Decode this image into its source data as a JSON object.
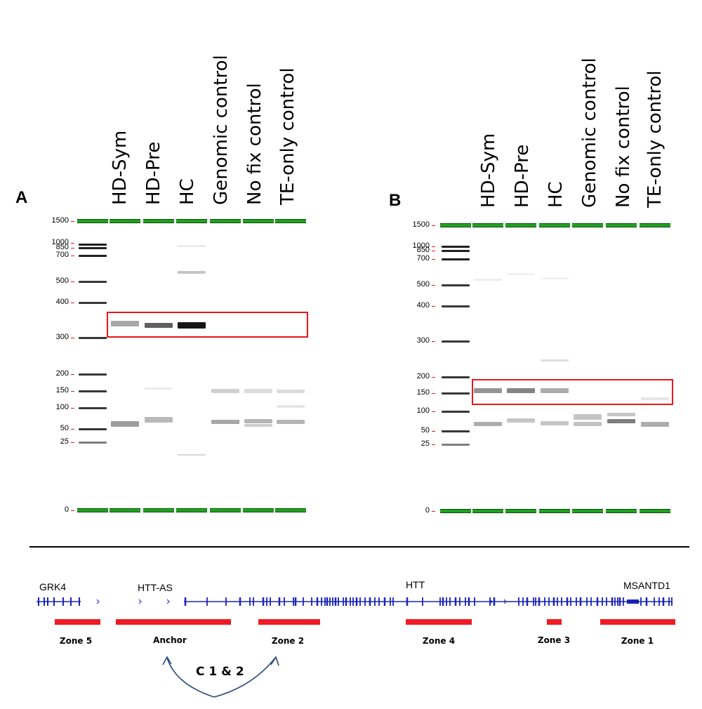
{
  "panels": [
    {
      "letter": "A",
      "lanes": [
        "HD-Sym",
        "HD-Pre",
        "HC",
        "Genomic control",
        "No fix control",
        "TE-only control"
      ],
      "ladder_labels": [
        "1500",
        "1000",
        "850",
        "700",
        "500",
        "400",
        "300",
        "200",
        "150",
        "100",
        "50",
        "25",
        "0"
      ]
    },
    {
      "letter": "B",
      "lanes": [
        "HD-Sym",
        "HD-Pre",
        "HC",
        "Genomic control",
        "No fix control",
        "TE-only control"
      ],
      "ladder_labels": [
        "1500",
        "1000",
        "850",
        "700",
        "500",
        "400",
        "300",
        "200",
        "150",
        "100",
        "50",
        "25",
        "0"
      ]
    }
  ],
  "track": {
    "genes": [
      "GRK4",
      "HTT-AS",
      "HTT",
      "MSANTD1"
    ],
    "zones": [
      "Zone 5",
      "Anchor",
      "Zone 2",
      "Zone 4",
      "Zone 3",
      "Zone 1"
    ],
    "connection_label": "C 1 & 2"
  },
  "colors": {
    "marker_green": "#1fa31f",
    "highlight_red": "#e8161b",
    "zone_red": "#ee1b24",
    "track_blue": "#1a23b8",
    "arrow_blue": "#2a4a7a"
  }
}
